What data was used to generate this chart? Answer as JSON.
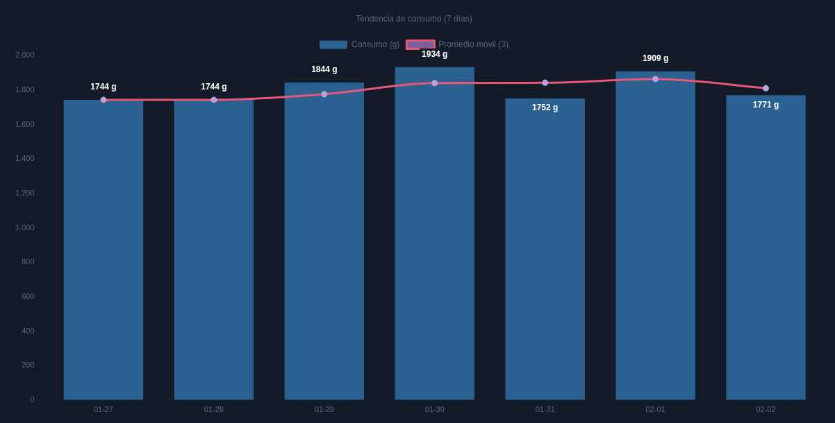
{
  "chart_data": {
    "type": "bar",
    "title": "Tendencia de consumo (7 días)",
    "categories": [
      "01-27",
      "01-28",
      "01-29",
      "01-30",
      "01-31",
      "02-01",
      "02-02"
    ],
    "series": [
      {
        "name": "Consumo (g)",
        "color": "#2b6190",
        "values": [
          1744,
          1744,
          1844,
          1934,
          1752,
          1909,
          1771
        ],
        "value_labels": [
          "1744 g",
          "1744 g",
          "1844 g",
          "1934 g",
          "1752 g",
          "1909 g",
          "1771 g"
        ]
      },
      {
        "name": "Promedio móvil (3)",
        "type": "line",
        "color": "#e8577a",
        "values": [
          1744,
          1744,
          1777,
          1841,
          1843,
          1865,
          1811
        ]
      }
    ],
    "ylim": [
      0,
      2000
    ],
    "yticks": [
      0,
      200,
      400,
      600,
      800,
      {
        "value": 1000,
        "label": "1.000"
      },
      {
        "value": 1200,
        "label": "1.200"
      },
      {
        "value": 1400,
        "label": "1.400"
      },
      {
        "value": 1600,
        "label": "1.600"
      },
      {
        "value": 1800,
        "label": "1.800"
      },
      {
        "value": 2000,
        "label": "2.000"
      }
    ],
    "grid": false,
    "legend": "top",
    "marker": "circle",
    "line_style": "solid"
  }
}
